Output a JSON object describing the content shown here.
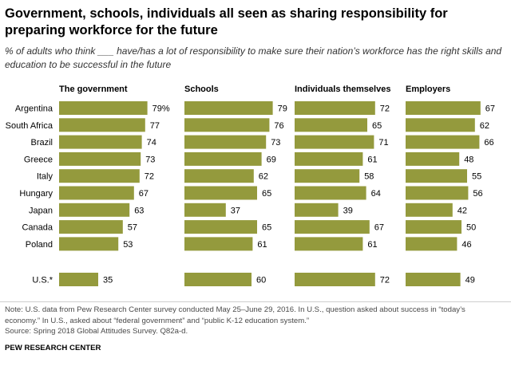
{
  "title": "Government, schools, individuals all seen as sharing responsibility for preparing workforce for the future",
  "subtitle": "% of adults who think ___ have/has a lot of responsibility to make sure their nation’s workforce has the right skills and education to be successful in the future",
  "notes": [
    "Note: U.S. data from Pew Research Center survey conducted May 25–June 29, 2016. In U.S., question asked about success in “today’s",
    "economy.” In U.S., asked about “federal government” and “public K-12 education system.”",
    "Source: Spring 2018 Global Attitudes Survey. Q82a-d."
  ],
  "footer": "PEW RESEARCH CENTER",
  "colors": {
    "bar": "#949a3d",
    "text": "#000000",
    "note": "#4a4a4a"
  },
  "chart_data": {
    "type": "bar",
    "orientation": "horizontal",
    "layout": "small-multiples",
    "categories": [
      "Argentina",
      "South Africa",
      "Brazil",
      "Greece",
      "Italy",
      "Hungary",
      "Japan",
      "Canada",
      "Poland",
      "U.S.*"
    ],
    "value_suffix_first": "%",
    "xlim": [
      0,
      100
    ],
    "grid": false,
    "legend": "none",
    "series": [
      {
        "name": "The government",
        "values": [
          79,
          77,
          74,
          73,
          72,
          67,
          63,
          57,
          53,
          35
        ]
      },
      {
        "name": "Schools",
        "values": [
          79,
          76,
          73,
          69,
          62,
          65,
          37,
          65,
          61,
          60
        ]
      },
      {
        "name": "Individuals themselves",
        "values": [
          72,
          65,
          71,
          61,
          58,
          64,
          39,
          67,
          61,
          72
        ]
      },
      {
        "name": "Employers",
        "values": [
          67,
          62,
          66,
          48,
          55,
          56,
          42,
          50,
          46,
          49
        ]
      }
    ]
  }
}
